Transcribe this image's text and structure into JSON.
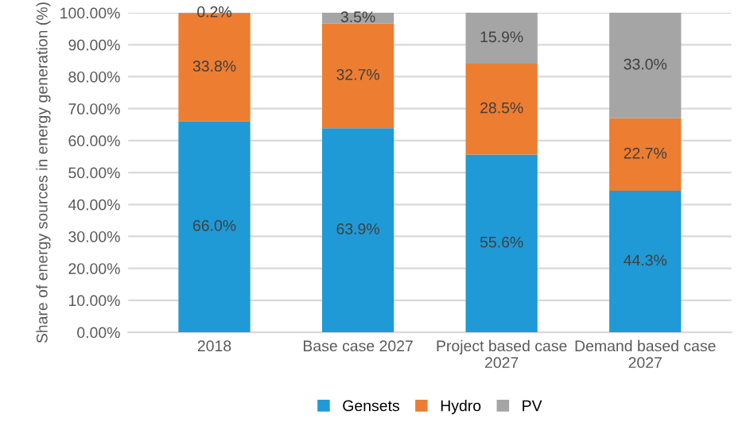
{
  "chart_data": {
    "type": "bar",
    "stacked": true,
    "ylabel": "Share of energy sources in energy generation (%)",
    "categories": [
      "2018",
      "Base case 2027",
      "Project based case 2027",
      "Demand based case 2027"
    ],
    "series": [
      {
        "name": "Gensets",
        "color": "#1f9ad6",
        "values": [
          66.0,
          63.9,
          55.6,
          44.3
        ],
        "value_labels": [
          "66.0%",
          "63.9%",
          "55.6%",
          "44.3%"
        ]
      },
      {
        "name": "Hydro",
        "color": "#ed7d31",
        "values": [
          33.8,
          32.7,
          28.5,
          22.7
        ],
        "value_labels": [
          "33.8%",
          "32.7%",
          "28.5%",
          "22.7%"
        ]
      },
      {
        "name": "PV",
        "color": "#a5a5a5",
        "values": [
          0.2,
          3.5,
          15.9,
          33.0
        ],
        "value_labels": [
          "0.2%",
          "3.5%",
          "15.9%",
          "33.0%"
        ]
      }
    ],
    "ylim": [
      0,
      100
    ],
    "yticks": [
      {
        "value": 0,
        "label": "0.00%"
      },
      {
        "value": 10,
        "label": "10.00%"
      },
      {
        "value": 20,
        "label": "20.00%"
      },
      {
        "value": 30,
        "label": "30.00%"
      },
      {
        "value": 40,
        "label": "40.00%"
      },
      {
        "value": 50,
        "label": "50.00%"
      },
      {
        "value": 60,
        "label": "60.00%"
      },
      {
        "value": 70,
        "label": "70.00%"
      },
      {
        "value": 80,
        "label": "80.00%"
      },
      {
        "value": 90,
        "label": "90.00%"
      },
      {
        "value": 100,
        "label": "100.00%"
      }
    ],
    "grid": "y",
    "legend": "bottom"
  }
}
